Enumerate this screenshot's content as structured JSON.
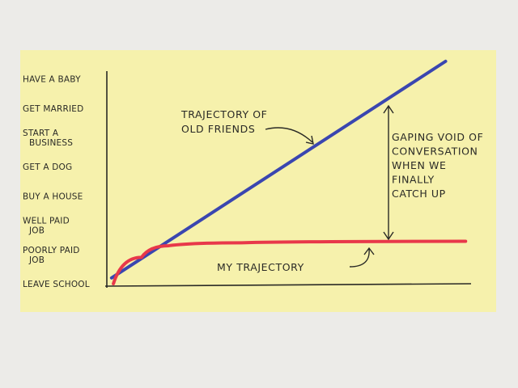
{
  "chart_data": {
    "type": "line",
    "title": "",
    "xlabel": "",
    "ylabel": "",
    "y_categories": [
      "LEAVE SCHOOL",
      "POORLY PAID JOB",
      "WELL PAID JOB",
      "BUY A HOUSE",
      "GET A DOG",
      "START A BUSINESS",
      "GET MARRIED",
      "HAVE A BABY"
    ],
    "xlim": [
      0,
      10
    ],
    "ylim": [
      0,
      8
    ],
    "grid": false,
    "series": [
      {
        "color": "#3a46b0",
        "points": [
          [
            0.13,
            0.2
          ],
          [
            9.3,
            7.6
          ]
        ]
      },
      {
        "color": "#e8384a",
        "points": [
          [
            0.18,
            0.0
          ],
          [
            0.95,
            0.9
          ],
          [
            1.7,
            1.3
          ],
          [
            3.7,
            1.4
          ],
          [
            9.85,
            1.45
          ]
        ]
      }
    ],
    "annotations": {
      "old_friends": "TRAJECTORY OF OLD FRIENDS",
      "old_friends_lines": [
        "TRAJECTORY OF",
        "OLD FRIENDS"
      ],
      "mine": "MY TRAJECTORY",
      "gap_lines": [
        "GAPING VOID OF",
        "CONVERSATION",
        "WHEN WE",
        "FINALLY",
        "CATCH UP"
      ]
    },
    "colors": {
      "note": "#f6f1ac",
      "ink": "#2a2a26"
    }
  }
}
